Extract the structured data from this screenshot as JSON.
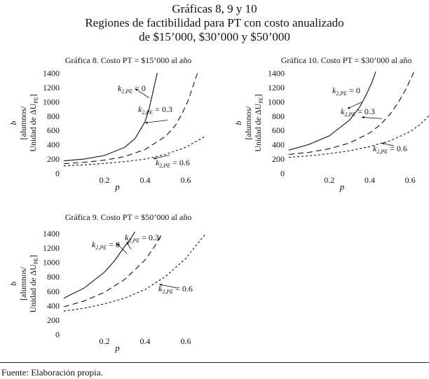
{
  "header": {
    "line1": "Gráficas 8, 9 y 10",
    "line2": "Regiones de factibilidad para PT con costo anualizado",
    "line3": "de $15’000, $30’000 y $50’000"
  },
  "footer": {
    "source": "Fuente: Elaboración propia."
  },
  "chart_data": [
    {
      "type": "line",
      "title": "Gráfica 8. Costo PT = $15’000 al año",
      "xlabel": "p",
      "ylabel": [
        "b",
        "[alumnos/",
        "Unidad de ΔU"
      ],
      "ylabel_sub": "PE",
      "ylabel_tail": "]",
      "xlim": [
        0,
        0.7
      ],
      "ylim": [
        0,
        1400
      ],
      "xticks": [
        "0.2",
        "0.4",
        "0.6"
      ],
      "yticks": [
        "0",
        "200",
        "400",
        "600",
        "800",
        "1000",
        "1200",
        "1400"
      ],
      "series": [
        {
          "name": "k2,PE = 0",
          "k_value": "0",
          "style": "solid",
          "x": [
            0.0,
            0.1,
            0.2,
            0.3,
            0.35,
            0.4,
            0.42,
            0.44,
            0.46
          ],
          "y": [
            170,
            195,
            245,
            360,
            480,
            720,
            900,
            1150,
            1400
          ]
        },
        {
          "name": "k2,PE = 0.3",
          "k_value": "0.3",
          "style": "dashed",
          "x": [
            0.0,
            0.1,
            0.2,
            0.3,
            0.4,
            0.5,
            0.55,
            0.58,
            0.61,
            0.64,
            0.66
          ],
          "y": [
            130,
            150,
            180,
            230,
            330,
            510,
            670,
            820,
            1000,
            1250,
            1420
          ]
        },
        {
          "name": "k2,PE = 0.6",
          "k_value": "0.6",
          "style": "dotted",
          "x": [
            0.0,
            0.1,
            0.2,
            0.3,
            0.4,
            0.5,
            0.6,
            0.7
          ],
          "y": [
            100,
            115,
            135,
            160,
            195,
            260,
            360,
            520
          ]
        }
      ]
    },
    {
      "type": "line",
      "title": "Gráfica 10. Costo PT = $30’000 al año",
      "xlabel": "p",
      "ylabel": [
        "b",
        "[alumnos/",
        "Unidad de ΔU"
      ],
      "ylabel_sub": "PE",
      "ylabel_tail": "]",
      "xlim": [
        0,
        0.7
      ],
      "ylim": [
        0,
        1400
      ],
      "xticks": [
        "0.2",
        "0.4",
        "0.6"
      ],
      "yticks": [
        "0",
        "200",
        "400",
        "600",
        "800",
        "1000",
        "1200",
        "1400"
      ],
      "series": [
        {
          "name": "k2,PE = 0",
          "k_value": "0",
          "style": "solid",
          "x": [
            0.0,
            0.1,
            0.2,
            0.3,
            0.35,
            0.38,
            0.41,
            0.43
          ],
          "y": [
            320,
            400,
            520,
            740,
            920,
            1080,
            1260,
            1420
          ]
        },
        {
          "name": "k2,PE = 0.3",
          "k_value": "0.3",
          "style": "dashed",
          "x": [
            0.0,
            0.1,
            0.2,
            0.3,
            0.4,
            0.45,
            0.5,
            0.54,
            0.58,
            0.62
          ],
          "y": [
            260,
            290,
            340,
            420,
            560,
            670,
            820,
            980,
            1180,
            1420
          ]
        },
        {
          "name": "k2,PE = 0.6",
          "k_value": "0.6",
          "style": "dotted",
          "x": [
            0.0,
            0.1,
            0.2,
            0.3,
            0.4,
            0.5,
            0.6,
            0.65,
            0.7
          ],
          "y": [
            220,
            240,
            270,
            310,
            370,
            450,
            580,
            680,
            820
          ]
        }
      ]
    },
    {
      "type": "line",
      "title": "Gráfica 9. Costo PT = $50’000 al año",
      "xlabel": "p",
      "ylabel": [
        "b",
        "[alumnos/",
        "Unidad de ΔU"
      ],
      "ylabel_sub": "PE",
      "ylabel_tail": "]",
      "xlim": [
        0,
        0.7
      ],
      "ylim": [
        0,
        1400
      ],
      "xticks": [
        "0.2",
        "0.4",
        "0.6"
      ],
      "yticks": [
        "0",
        "200",
        "400",
        "600",
        "800",
        "1000",
        "1200",
        "1400"
      ],
      "series": [
        {
          "name": "k2,PE = 0",
          "k_value": "0",
          "style": "solid",
          "x": [
            0.0,
            0.1,
            0.2,
            0.25,
            0.3,
            0.33,
            0.35
          ],
          "y": [
            500,
            640,
            860,
            1020,
            1220,
            1330,
            1420
          ]
        },
        {
          "name": "k2,PE = 0.3",
          "k_value": "0.3",
          "style": "dashed",
          "x": [
            0.0,
            0.1,
            0.2,
            0.3,
            0.4,
            0.45,
            0.48
          ],
          "y": [
            380,
            460,
            580,
            760,
            1030,
            1230,
            1380
          ]
        },
        {
          "name": "k2,PE = 0.6",
          "k_value": "0.6",
          "style": "dotted",
          "x": [
            0.0,
            0.1,
            0.2,
            0.3,
            0.4,
            0.5,
            0.6,
            0.65,
            0.7
          ],
          "y": [
            320,
            360,
            420,
            500,
            620,
            800,
            1050,
            1230,
            1400
          ]
        }
      ]
    }
  ]
}
